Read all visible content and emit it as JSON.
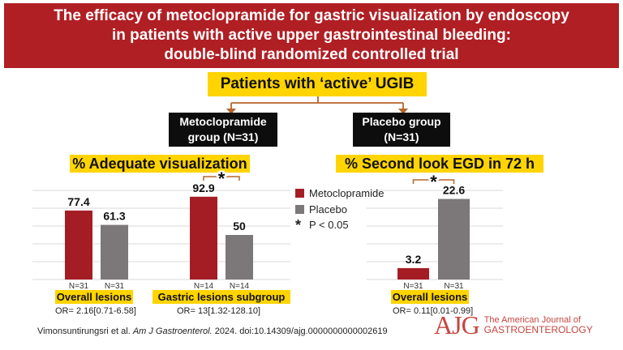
{
  "title": "The efficacy of metoclopramide for gastric visualization by endoscopy\nin patients with active upper gastrointestinal bleeding:\ndouble-blind randomized controlled trial",
  "patients_label": "Patients with ‘active’ UGIB",
  "groups": {
    "metoclopramide": "Metoclopramide\ngroup (N=31)",
    "placebo": "Placebo group\n(N=31)"
  },
  "panels": {
    "adequate_title": "% Adequate visualization",
    "second_look_title": "% Second look EGD in 72 h"
  },
  "legend": {
    "metoclopramide": "Metoclopramide",
    "placebo": "Placebo",
    "significance": "P < 0.05"
  },
  "colors": {
    "metoclopramide": "#a51d24",
    "placebo": "#7c7778",
    "banner": "#b01f24",
    "highlight": "#ffd400"
  },
  "chart_data": [
    {
      "type": "bar",
      "categories": [
        "Overall lesions",
        "Gastric lesions subgroup"
      ],
      "series": [
        {
          "name": "Metoclopramide",
          "values": [
            77.4,
            92.9
          ],
          "n": [
            "N=31",
            "N=14"
          ]
        },
        {
          "name": "Placebo",
          "values": [
            61.3,
            50
          ],
          "n": [
            "N=31",
            "N=14"
          ]
        }
      ],
      "title": "% Adequate visualization",
      "ylim": [
        0,
        100
      ],
      "grid": true,
      "significance": [
        false,
        true
      ],
      "odds_ratios": [
        "OR= 2.16[0.71-6.58]",
        "OR= 13[1.32-128.10]"
      ]
    },
    {
      "type": "bar",
      "categories": [
        "Overall lesions"
      ],
      "series": [
        {
          "name": "Metoclopramide",
          "values": [
            3.2
          ],
          "n": [
            "N=31"
          ]
        },
        {
          "name": "Placebo",
          "values": [
            22.6
          ],
          "n": [
            "N=31"
          ]
        }
      ],
      "title": "% Second look EGD in 72 h",
      "ylim": [
        0,
        25
      ],
      "grid": true,
      "significance": [
        true
      ],
      "odds_ratios": [
        "OR= 0.11[0.01-0.99]"
      ]
    }
  ],
  "citation_prefix": "Vimonsuntirungsri et al. ",
  "citation_journal": "Am J Gastroenterol.",
  "citation_suffix": " 2024. doi:10.14309/ajg.0000000000002619",
  "logo": {
    "mark": "AJG",
    "line1": "The American Journal of",
    "line2": "GASTROENTEROLOGY"
  }
}
